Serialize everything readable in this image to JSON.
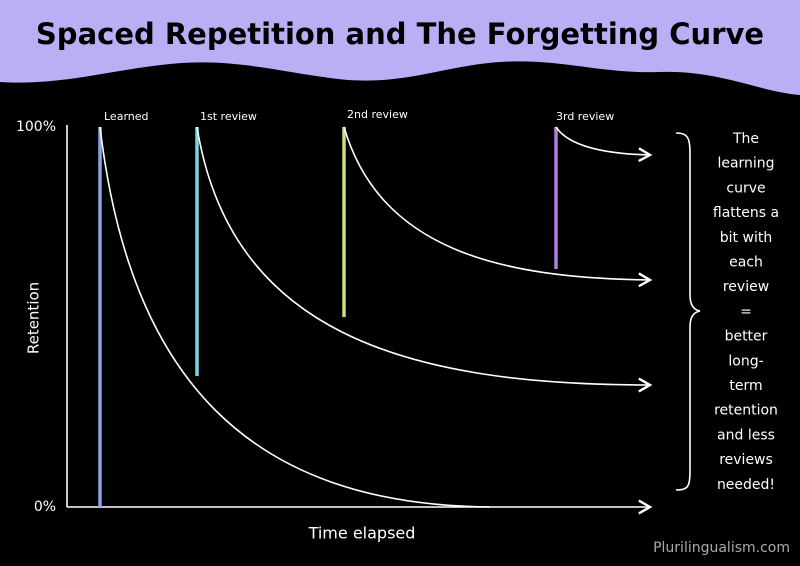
{
  "header": {
    "title": "Spaced Repetition and The Forgetting Curve"
  },
  "axes": {
    "y_top": "100%",
    "y_bottom": "0%",
    "y_label": "Retention",
    "x_label": "Time elapsed"
  },
  "events": [
    "Learned",
    "1st review",
    "2nd review",
    "3rd review"
  ],
  "note": {
    "lines": [
      "The",
      "learning",
      "curve",
      "flattens a",
      "bit with",
      "each",
      "review",
      "=",
      "better",
      "long-",
      "term",
      "retention",
      "and less",
      "reviews",
      "needed!"
    ]
  },
  "footer": {
    "credit": "Plurilingualism.com"
  }
}
